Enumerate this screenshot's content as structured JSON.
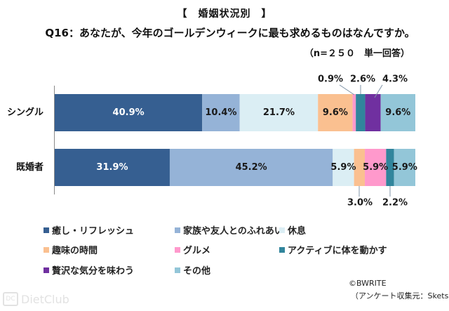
{
  "header": {
    "section_title": "【　婚姻状況別　】",
    "question": "Q16：あなたが、今年のゴールデンウィークに最も求めるものはなんですか。",
    "sample_note": "（n=２５０　単一回答）"
  },
  "footer": {
    "copyright": "©BWRITE",
    "source": "（アンケート収集元：Skets）",
    "watermark": "DietClub",
    "watermark_icon": "DC"
  },
  "chart_data": {
    "type": "bar",
    "orientation": "horizontal",
    "stacked": true,
    "percent_stacked": true,
    "title": "【　婚姻状況別　】",
    "subtitle": "Q16：あなたが、今年のゴールデンウィークに最も求めるものはなんですか。",
    "note": "（n=２５０　単一回答）",
    "xlabel": "",
    "ylabel": "",
    "xlim": [
      0,
      100
    ],
    "grid": false,
    "legend_position": "bottom",
    "value_suffix": "%",
    "categories": [
      "シングル",
      "既婚者"
    ],
    "series": [
      {
        "name": "癒し・リフレッシュ",
        "color": "#365F91",
        "label_color": "#ffffff",
        "values": [
          40.9,
          31.9
        ]
      },
      {
        "name": "家族や友人とのふれあい",
        "color": "#95B3D7",
        "label_color": "#1a1a1a",
        "values": [
          10.4,
          45.2
        ]
      },
      {
        "name": "休息",
        "color": "#DBEEF4",
        "label_color": "#1a1a1a",
        "values": [
          21.7,
          5.9
        ]
      },
      {
        "name": "趣味の時間",
        "color": "#FAC090",
        "label_color": "#1a1a1a",
        "values": [
          9.6,
          3.0
        ]
      },
      {
        "name": "グルメ",
        "color": "#FF99CC",
        "label_color": "#1a1a1a",
        "values": [
          0.9,
          5.9
        ]
      },
      {
        "name": "アクティブに体を動かす",
        "color": "#31859C",
        "label_color": "#1a1a1a",
        "values": [
          2.6,
          2.2
        ]
      },
      {
        "name": "贅沢な気分を味わう",
        "color": "#7030A0",
        "label_color": "#1a1a1a",
        "values": [
          4.3,
          0.0
        ]
      },
      {
        "name": "その他",
        "color": "#93C6D8",
        "label_color": "#1a1a1a",
        "values": [
          9.6,
          5.9
        ]
      }
    ]
  }
}
